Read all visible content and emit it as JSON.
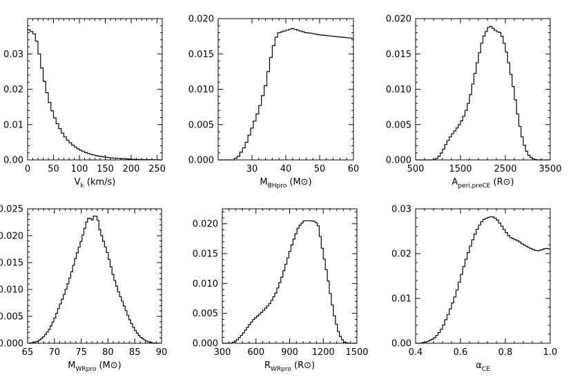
{
  "chart_data": [
    {
      "type": "histogram",
      "xlabel": {
        "main": "V",
        "sub": "k",
        "units": " (km/s)"
      },
      "xlim": [
        0,
        260
      ],
      "ylim": [
        0,
        0.04
      ],
      "xticks": [
        0,
        50,
        100,
        150,
        200,
        250
      ],
      "xtick_labels": [
        "0",
        "50",
        "100",
        "150",
        "200",
        "250"
      ],
      "yticks": [
        0,
        0.01,
        0.02,
        0.03
      ],
      "ytick_labels": [
        "0.00",
        "0.01",
        "0.02",
        "0.03"
      ],
      "step": 5,
      "curve": [
        [
          0,
          0.0372
        ],
        [
          5,
          0.0365
        ],
        [
          10,
          0.0362
        ],
        [
          15,
          0.0352
        ],
        [
          20,
          0.032
        ],
        [
          25,
          0.028
        ],
        [
          30,
          0.024
        ],
        [
          35,
          0.0205
        ],
        [
          40,
          0.0175
        ],
        [
          45,
          0.015
        ],
        [
          50,
          0.0128
        ],
        [
          55,
          0.011
        ],
        [
          60,
          0.0095
        ],
        [
          65,
          0.0082
        ],
        [
          70,
          0.007
        ],
        [
          75,
          0.006
        ],
        [
          80,
          0.0052
        ],
        [
          85,
          0.0045
        ],
        [
          90,
          0.0039
        ],
        [
          95,
          0.0034
        ],
        [
          100,
          0.0029
        ],
        [
          110,
          0.0022
        ],
        [
          120,
          0.0017
        ],
        [
          130,
          0.0013
        ],
        [
          140,
          0.001
        ],
        [
          150,
          0.0008
        ],
        [
          160,
          0.0006
        ],
        [
          170,
          0.0005
        ],
        [
          180,
          0.0004
        ],
        [
          190,
          0.0003
        ],
        [
          200,
          0.0002
        ],
        [
          220,
          0.0001
        ],
        [
          240,
          5e-05
        ],
        [
          260,
          0.0
        ]
      ]
    },
    {
      "type": "histogram",
      "xlabel": {
        "main": "M",
        "sub": "BHpro",
        "units": " (M⊙)"
      },
      "xlim": [
        20,
        60
      ],
      "ylim": [
        0,
        0.02
      ],
      "xticks": [
        30,
        40,
        50,
        60
      ],
      "xtick_labels": [
        "30",
        "40",
        "50",
        "60"
      ],
      "yticks": [
        0,
        0.005,
        0.01,
        0.015,
        0.02
      ],
      "ytick_labels": [
        "0.000",
        "0.005",
        "0.010",
        "0.015",
        "0.020"
      ],
      "step": 0.8,
      "curve": [
        [
          20,
          0.0
        ],
        [
          24.5,
          0.0
        ],
        [
          26,
          0.0005
        ],
        [
          28,
          0.002
        ],
        [
          30,
          0.0045
        ],
        [
          32,
          0.007
        ],
        [
          34,
          0.0105
        ],
        [
          35,
          0.013
        ],
        [
          36,
          0.0155
        ],
        [
          37,
          0.0172
        ],
        [
          38,
          0.018
        ],
        [
          40,
          0.0183
        ],
        [
          42,
          0.0186
        ],
        [
          44,
          0.0183
        ],
        [
          46,
          0.018
        ],
        [
          48,
          0.0179
        ],
        [
          50,
          0.0177
        ],
        [
          52,
          0.0176
        ],
        [
          54,
          0.0175
        ],
        [
          56,
          0.0174
        ],
        [
          58,
          0.0173
        ],
        [
          60,
          0.0172
        ]
      ]
    },
    {
      "type": "histogram",
      "xlabel": {
        "main": "A",
        "sub": "peri,preCE",
        "units": " (R⊙)"
      },
      "xlim": [
        500,
        3500
      ],
      "ylim": [
        0,
        0.02
      ],
      "xticks": [
        500,
        1500,
        2500,
        3500
      ],
      "xtick_labels": [
        "500",
        "1500",
        "2500",
        "3500"
      ],
      "yticks": [
        0,
        0.005,
        0.01,
        0.015,
        0.02
      ],
      "ytick_labels": [
        "0.000",
        "0.005",
        "0.010",
        "0.015",
        "0.020"
      ],
      "step": 50,
      "curve": [
        [
          500,
          0.0
        ],
        [
          900,
          0.0
        ],
        [
          1000,
          0.0003
        ],
        [
          1100,
          0.0012
        ],
        [
          1200,
          0.0025
        ],
        [
          1300,
          0.0035
        ],
        [
          1400,
          0.0043
        ],
        [
          1500,
          0.0052
        ],
        [
          1600,
          0.0065
        ],
        [
          1700,
          0.0085
        ],
        [
          1800,
          0.0115
        ],
        [
          1900,
          0.0145
        ],
        [
          2000,
          0.0172
        ],
        [
          2100,
          0.0185
        ],
        [
          2150,
          0.019
        ],
        [
          2200,
          0.0188
        ],
        [
          2300,
          0.0182
        ],
        [
          2400,
          0.018
        ],
        [
          2500,
          0.016
        ],
        [
          2600,
          0.013
        ],
        [
          2700,
          0.0095
        ],
        [
          2800,
          0.0055
        ],
        [
          2900,
          0.0025
        ],
        [
          3000,
          0.0008
        ],
        [
          3100,
          0.0002
        ],
        [
          3200,
          0.0
        ],
        [
          3500,
          0.0
        ]
      ]
    },
    {
      "type": "histogram",
      "xlabel": {
        "main": "M",
        "sub": "WRpro",
        "units": " (M⊙)"
      },
      "xlim": [
        65,
        90
      ],
      "ylim": [
        0,
        0.025
      ],
      "xticks": [
        65,
        70,
        75,
        80,
        85,
        90
      ],
      "xtick_labels": [
        "65",
        "70",
        "75",
        "80",
        "85",
        "90"
      ],
      "yticks": [
        0,
        0.005,
        0.01,
        0.015,
        0.02,
        0.025
      ],
      "ytick_labels": [
        "0.000",
        "0.005",
        "0.010",
        "0.015",
        "0.020",
        "0.025"
      ],
      "step": 0.35,
      "curve": [
        [
          65,
          0.0
        ],
        [
          66,
          0.0001
        ],
        [
          67,
          0.0004
        ],
        [
          68,
          0.0012
        ],
        [
          69,
          0.0025
        ],
        [
          70,
          0.0045
        ],
        [
          71,
          0.007
        ],
        [
          72,
          0.0095
        ],
        [
          73,
          0.0125
        ],
        [
          74,
          0.016
        ],
        [
          75,
          0.019
        ],
        [
          76,
          0.0225
        ],
        [
          76.5,
          0.0235
        ],
        [
          77,
          0.0228
        ],
        [
          77.5,
          0.0238
        ],
        [
          78,
          0.0235
        ],
        [
          78.5,
          0.021
        ],
        [
          79,
          0.0195
        ],
        [
          80,
          0.0165
        ],
        [
          81,
          0.0125
        ],
        [
          82,
          0.0095
        ],
        [
          83,
          0.007
        ],
        [
          84,
          0.0045
        ],
        [
          85,
          0.0025
        ],
        [
          86,
          0.0012
        ],
        [
          87,
          0.0005
        ],
        [
          88,
          0.0001
        ],
        [
          89,
          0.0
        ],
        [
          90,
          0.0
        ]
      ]
    },
    {
      "type": "histogram",
      "xlabel": {
        "main": "R",
        "sub": "WRpro",
        "units": " (R⊙)"
      },
      "xlim": [
        300,
        1500
      ],
      "ylim": [
        0,
        0.0225
      ],
      "xticks": [
        300,
        600,
        900,
        1200,
        1500
      ],
      "xtick_labels": [
        "300",
        "600",
        "900",
        "1200",
        "1500"
      ],
      "yticks": [
        0,
        0.005,
        0.01,
        0.015,
        0.02
      ],
      "ytick_labels": [
        "0.000",
        "0.005",
        "0.010",
        "0.015",
        "0.020"
      ],
      "step": 18,
      "curve": [
        [
          300,
          0.0
        ],
        [
          380,
          0.0
        ],
        [
          430,
          0.0005
        ],
        [
          480,
          0.0015
        ],
        [
          530,
          0.0028
        ],
        [
          580,
          0.004
        ],
        [
          630,
          0.0048
        ],
        [
          680,
          0.0057
        ],
        [
          730,
          0.0068
        ],
        [
          780,
          0.0085
        ],
        [
          830,
          0.011
        ],
        [
          880,
          0.014
        ],
        [
          930,
          0.017
        ],
        [
          980,
          0.0195
        ],
        [
          1030,
          0.0205
        ],
        [
          1080,
          0.0205
        ],
        [
          1130,
          0.0204
        ],
        [
          1160,
          0.0195
        ],
        [
          1180,
          0.017
        ],
        [
          1210,
          0.014
        ],
        [
          1240,
          0.011
        ],
        [
          1270,
          0.0075
        ],
        [
          1300,
          0.0045
        ],
        [
          1330,
          0.0022
        ],
        [
          1360,
          0.0008
        ],
        [
          1390,
          0.0002
        ],
        [
          1420,
          0.0
        ],
        [
          1500,
          0.0
        ]
      ]
    },
    {
      "type": "histogram",
      "xlabel": {
        "main": "α",
        "sub": "CE",
        "units": ""
      },
      "xlim": [
        0.4,
        1.0
      ],
      "ylim": [
        0,
        0.03
      ],
      "xticks": [
        0.4,
        0.6,
        0.8,
        1.0
      ],
      "xtick_labels": [
        "0.4",
        "0.6",
        "0.8",
        "1.0"
      ],
      "yticks": [
        0,
        0.01,
        0.02,
        0.03
      ],
      "ytick_labels": [
        "0.00",
        "0.01",
        "0.02",
        "0.03"
      ],
      "step": 0.01,
      "curve": [
        [
          0.4,
          0.0
        ],
        [
          0.42,
          0.0
        ],
        [
          0.45,
          0.0003
        ],
        [
          0.48,
          0.001
        ],
        [
          0.5,
          0.002
        ],
        [
          0.52,
          0.0035
        ],
        [
          0.55,
          0.007
        ],
        [
          0.58,
          0.011
        ],
        [
          0.6,
          0.0145
        ],
        [
          0.62,
          0.018
        ],
        [
          0.64,
          0.021
        ],
        [
          0.66,
          0.0238
        ],
        [
          0.68,
          0.026
        ],
        [
          0.7,
          0.0275
        ],
        [
          0.72,
          0.028
        ],
        [
          0.74,
          0.0283
        ],
        [
          0.76,
          0.0278
        ],
        [
          0.78,
          0.0265
        ],
        [
          0.8,
          0.025
        ],
        [
          0.82,
          0.0237
        ],
        [
          0.84,
          0.0232
        ],
        [
          0.86,
          0.0228
        ],
        [
          0.88,
          0.022
        ],
        [
          0.9,
          0.0215
        ],
        [
          0.92,
          0.021
        ],
        [
          0.94,
          0.0206
        ],
        [
          0.96,
          0.0208
        ],
        [
          0.98,
          0.0212
        ],
        [
          1.0,
          0.021
        ]
      ]
    }
  ]
}
